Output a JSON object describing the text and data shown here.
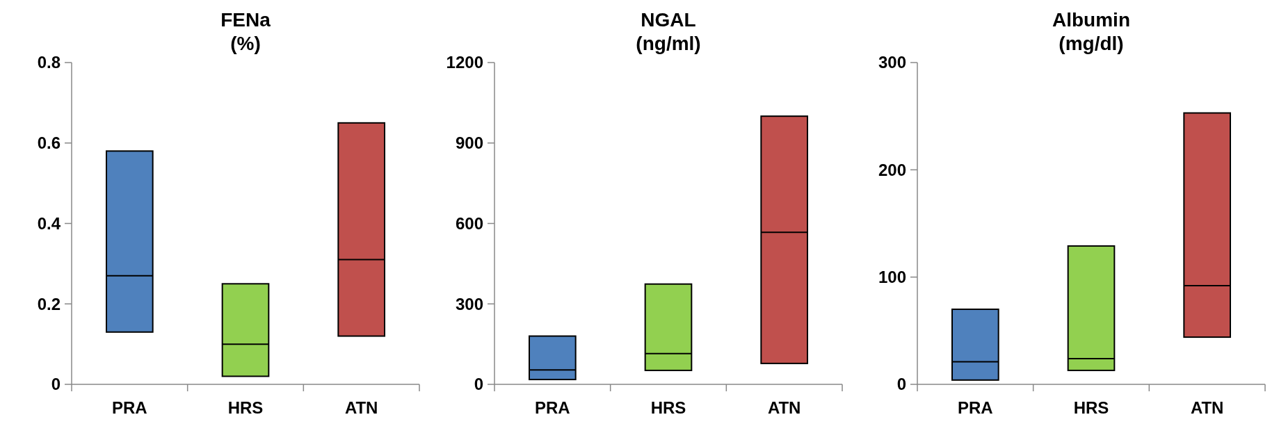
{
  "chart_data": [
    {
      "type": "box",
      "title": "FENa\n(%)",
      "categories": [
        "PRA",
        "HRS",
        "ATN"
      ],
      "colors": [
        "#4f81bd",
        "#92d050",
        "#c0504d"
      ],
      "ylim": [
        0,
        0.8
      ],
      "yticks": [
        {
          "value": 0,
          "label": "0"
        },
        {
          "value": 0.2,
          "label": "0.2"
        },
        {
          "value": 0.4,
          "label": "0.4"
        },
        {
          "value": 0.6,
          "label": "0.6"
        },
        {
          "value": 0.8,
          "label": "0.8"
        }
      ],
      "boxes": [
        {
          "low": 0.13,
          "q1": 0.13,
          "median": 0.27,
          "q3": 0.58,
          "high": 0.58
        },
        {
          "low": 0.02,
          "q1": 0.02,
          "median": 0.1,
          "q3": 0.25,
          "high": 0.25
        },
        {
          "low": 0.12,
          "q1": 0.12,
          "median": 0.31,
          "q3": 0.65,
          "high": 0.65
        }
      ]
    },
    {
      "type": "box",
      "title": "NGAL\n(ng/ml)",
      "categories": [
        "PRA",
        "HRS",
        "ATN"
      ],
      "colors": [
        "#4f81bd",
        "#92d050",
        "#c0504d"
      ],
      "ylim": [
        0,
        1200
      ],
      "yticks": [
        0,
        300,
        600,
        900,
        1200
      ],
      "boxes": [
        {
          "low": 18,
          "q1": 18,
          "median": 54,
          "q3": 180,
          "high": 180
        },
        {
          "low": 52,
          "q1": 52,
          "median": 115,
          "q3": 374,
          "high": 374
        },
        {
          "low": 78,
          "q1": 78,
          "median": 567,
          "q3": 1000,
          "high": 1000
        }
      ]
    },
    {
      "type": "box",
      "title": "Albumin\n(mg/dl)",
      "categories": [
        "PRA",
        "HRS",
        "ATN"
      ],
      "colors": [
        "#4f81bd",
        "#92d050",
        "#c0504d"
      ],
      "ylim": [
        0,
        300
      ],
      "yticks": [
        0,
        100,
        200,
        300
      ],
      "boxes": [
        {
          "low": 4,
          "q1": 4,
          "median": 21,
          "q3": 70,
          "high": 70
        },
        {
          "low": 13,
          "q1": 13,
          "median": 24,
          "q3": 129,
          "high": 129
        },
        {
          "low": 44,
          "q1": 44,
          "median": 92,
          "q3": 253,
          "high": 253
        }
      ]
    }
  ]
}
